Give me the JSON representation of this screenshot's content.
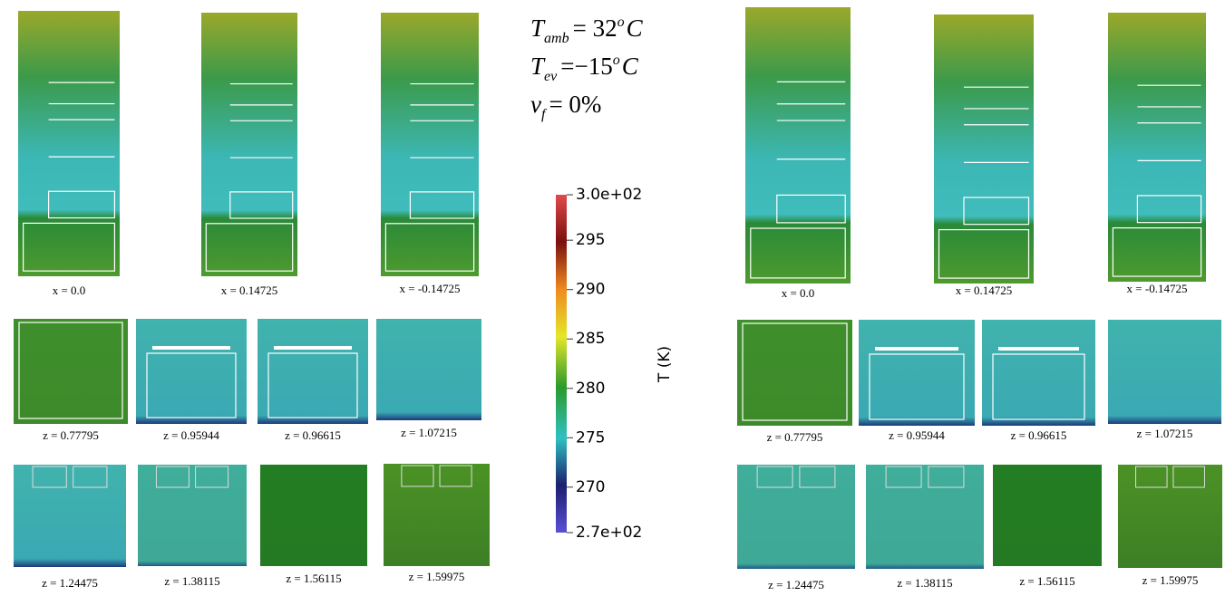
{
  "left_group": {
    "tall_panels": [
      {
        "label": "x = 0.0"
      },
      {
        "label": "x = 0.14725"
      },
      {
        "label": "x = -0.14725"
      }
    ],
    "square_panels": [
      {
        "label": "z = 0.77795"
      },
      {
        "label": "z = 0.95944"
      },
      {
        "label": "z = 0.96615"
      },
      {
        "label": "z = 1.07215"
      },
      {
        "label": "z = 1.24475"
      },
      {
        "label": "z = 1.38115"
      },
      {
        "label": "z = 1.56115"
      },
      {
        "label": "z = 1.59975"
      }
    ]
  },
  "right_group": {
    "tall_panels": [
      {
        "label": "x = 0.0"
      },
      {
        "label": "x = 0.14725"
      },
      {
        "label": "x = -0.14725"
      }
    ],
    "square_panels": [
      {
        "label": "z = 0.77795"
      },
      {
        "label": "z = 0.95944"
      },
      {
        "label": "z = 0.96615"
      },
      {
        "label": "z = 1.07215"
      },
      {
        "label": "z = 1.24475"
      },
      {
        "label": "z = 1.38115"
      },
      {
        "label": "z = 1.56115"
      },
      {
        "label": "z = 1.59975"
      }
    ]
  },
  "conditions": [
    {
      "var": "T",
      "sub": "amb",
      "rhs": "= 32",
      "sup": "o",
      "unit": "C"
    },
    {
      "var": "T",
      "sub": "ev",
      "rhs": "=−15",
      "sup": "o",
      "unit": "C"
    },
    {
      "var": "v",
      "sub": "f",
      "rhs": "= 0%"
    }
  ],
  "colorbar": {
    "title": "T (K)",
    "range": [
      265.4,
      299.6
    ],
    "ticks": [
      {
        "value": 299.6,
        "label": "3.0e+02"
      },
      295,
      290,
      285,
      280,
      275,
      270,
      {
        "value": 265.4,
        "label": "2.7e+02"
      }
    ]
  }
}
